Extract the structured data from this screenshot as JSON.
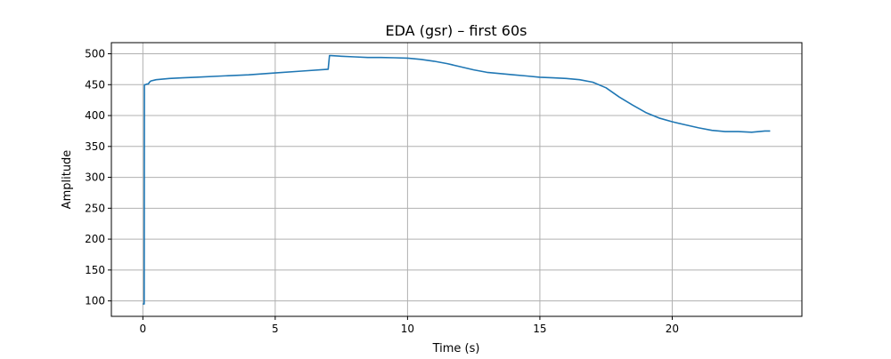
{
  "chart_data": {
    "type": "line",
    "title": "EDA (gsr) – first 60s",
    "xlabel": "Time (s)",
    "ylabel": "Amplitude",
    "xlim": [
      -1.19,
      24.9
    ],
    "ylim": [
      75,
      518
    ],
    "xticks": [
      0,
      5,
      10,
      15,
      20
    ],
    "yticks": [
      100,
      150,
      200,
      250,
      300,
      350,
      400,
      450,
      500
    ],
    "grid": true,
    "line_color": "#1f77b4",
    "series": [
      {
        "x": [
          0.0,
          0.05,
          0.06,
          0.1,
          0.15,
          0.2,
          0.25,
          0.3,
          0.5,
          1.0,
          1.5,
          2.0,
          3.0,
          4.0,
          5.0,
          6.0,
          7.0,
          7.05,
          7.1,
          7.5,
          8.0,
          8.5,
          9.0,
          9.5,
          10.0,
          10.5,
          11.0,
          11.5,
          12.0,
          12.5,
          13.0,
          13.5,
          14.0,
          14.5,
          15.0,
          15.5,
          16.0,
          16.5,
          17.0,
          17.5,
          18.0,
          18.5,
          19.0,
          19.5,
          20.0,
          20.5,
          21.0,
          21.5,
          22.0,
          22.5,
          23.0,
          23.5,
          23.7
        ],
        "y": [
          95,
          95,
          450,
          450,
          451,
          451,
          454,
          456,
          458,
          460,
          461,
          462,
          464,
          466,
          469,
          472,
          475,
          497,
          497,
          496,
          495,
          494,
          494,
          493.5,
          493,
          491,
          488,
          484,
          479,
          474,
          470,
          468,
          466,
          464,
          462,
          461,
          460,
          458,
          454,
          445,
          430,
          417,
          405,
          396,
          390,
          385,
          380,
          376,
          374,
          374,
          373,
          375,
          375
        ]
      }
    ]
  }
}
